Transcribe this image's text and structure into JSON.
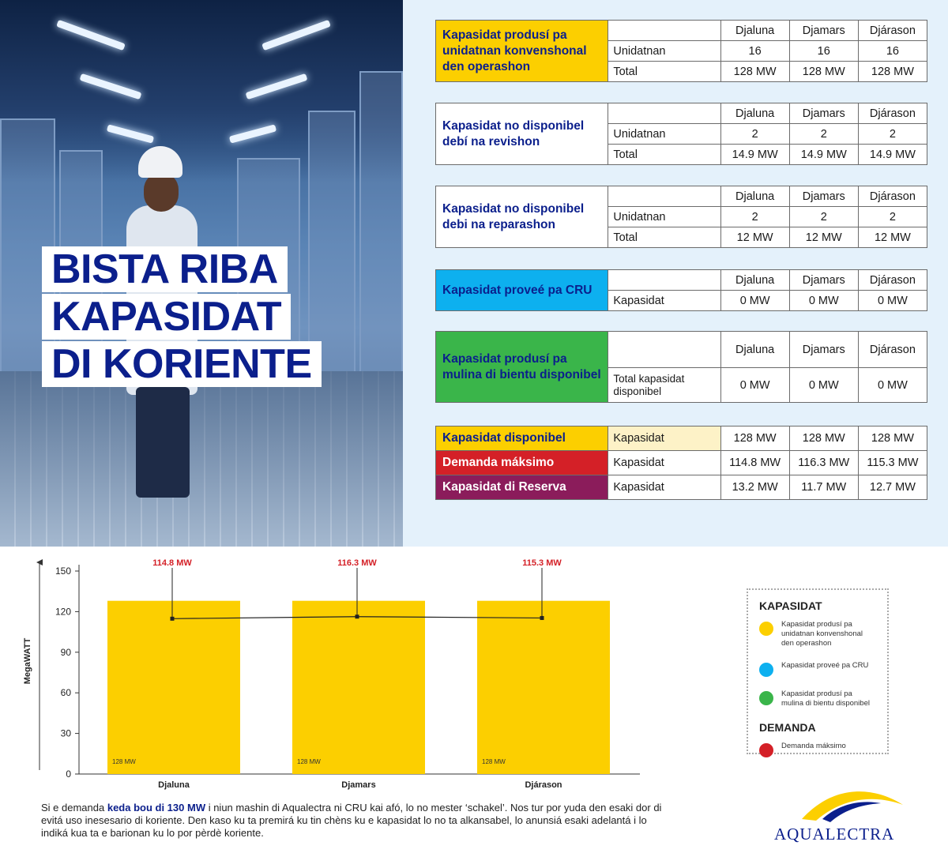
{
  "title": {
    "line1": "BISTA RIBA",
    "line2": "KAPASIDAT",
    "line3": "DI KORIENTE"
  },
  "tables": [
    {
      "label": "Kapasidat produsí pa unidatnan konvenshonal den operashon",
      "color": "yellow",
      "days": [
        "Djaluna",
        "Djamars",
        "Djárason"
      ],
      "rows": [
        {
          "name": "Unidatnan",
          "values": [
            "16",
            "16",
            "16"
          ]
        },
        {
          "name": "Total",
          "values": [
            "128 MW",
            "128 MW",
            "128 MW"
          ]
        }
      ]
    },
    {
      "label": "Kapasidat no disponibel debí na revishon",
      "color": "white",
      "days": [
        "Djaluna",
        "Djamars",
        "Djárason"
      ],
      "rows": [
        {
          "name": "Unidatnan",
          "values": [
            "2",
            "2",
            "2"
          ]
        },
        {
          "name": "Total",
          "values": [
            "14.9 MW",
            "14.9 MW",
            "14.9 MW"
          ]
        }
      ]
    },
    {
      "label": "Kapasidat no disponibel debi na reparashon",
      "color": "white",
      "days": [
        "Djaluna",
        "Djamars",
        "Djárason"
      ],
      "rows": [
        {
          "name": "Unidatnan",
          "values": [
            "2",
            "2",
            "2"
          ]
        },
        {
          "name": "Total",
          "values": [
            "12 MW",
            "12 MW",
            "12 MW"
          ]
        }
      ]
    },
    {
      "label": "Kapasidat proveé pa CRU",
      "color": "blue",
      "days": [
        "Djaluna",
        "Djamars",
        "Djárason"
      ],
      "rows": [
        {
          "name": "Kapasidat",
          "values": [
            "0 MW",
            "0 MW",
            "0 MW"
          ]
        }
      ]
    },
    {
      "label": "Kapasidat produsí pa mulina di bientu disponibel",
      "color": "green",
      "days": [
        "Djaluna",
        "Djamars",
        "Djárason"
      ],
      "rows": [
        {
          "name": "Total kapasidat disponibel",
          "values": [
            "0 MW",
            "0 MW",
            "0 MW"
          ]
        }
      ]
    }
  ],
  "summary": [
    {
      "label": "Kapasidat disponibel",
      "color": "lightyellow",
      "name": "Kapasidat",
      "values": [
        "128 MW",
        "128 MW",
        "128 MW"
      ]
    },
    {
      "label": "Demanda máksimo",
      "color": "red",
      "name": "Kapasidat",
      "values": [
        "114.8 MW",
        "116.3 MW",
        "115.3 MW"
      ]
    },
    {
      "label": "Kapasidat di Reserva",
      "color": "purple",
      "name": "Kapasidat",
      "values": [
        "13.2 MW",
        "11.7 MW",
        "12.7 MW"
      ]
    }
  ],
  "chart_data": {
    "type": "bar",
    "categories": [
      "Djaluna",
      "Djamars",
      "Djárason"
    ],
    "series": [
      {
        "values": [
          128,
          128,
          128
        ],
        "color": "#fccf00",
        "bar_labels": [
          "128 MW",
          "128 MW",
          "128 MW"
        ]
      },
      {
        "type": "line",
        "values": [
          114.8,
          116.3,
          115.3
        ],
        "color": "#222222",
        "point_labels": [
          "114.8 MW",
          "116.3 MW",
          "115.3 MW"
        ],
        "label_color": "#d42027"
      }
    ],
    "ylabel": "MegaWATT",
    "yticks": [
      0,
      30,
      60,
      90,
      120,
      150
    ],
    "ylim": [
      0,
      150
    ],
    "grid": false
  },
  "legend": {
    "capacity_heading": "KAPASIDAT",
    "capacity_items": [
      {
        "label": "Kapasidat produsí pa unidatnan konvenshonal den operashon",
        "color": "#fccf00"
      },
      {
        "label": "Kapasidat proveé pa CRU",
        "color": "#0db0ef"
      },
      {
        "label": "Kapasidat produsí pa mulina di bientu disponibel",
        "color": "#3ab54a"
      }
    ],
    "demand_heading": "DEMANDA",
    "demand_items": [
      {
        "label": "Demanda máksimo",
        "color": "#d42027"
      }
    ]
  },
  "note": {
    "prefix": "Si e demanda ",
    "bold": "keda bou di 130 MW",
    "rest": " i niun mashin di Aqualectra ni CRU kai afó, lo no mester ‘schakel’. Nos tur por yuda den esaki dor di evitá uso inesesario di koriente. Den kaso ku ta premirá ku tin chèns ku e kapasidat lo no ta alkansabel, lo anunsiá esaki adelantá i lo indiká kua ta e barionan ku lo por pèrdè koriente."
  },
  "logo": {
    "text": "AQUALECTRA"
  }
}
